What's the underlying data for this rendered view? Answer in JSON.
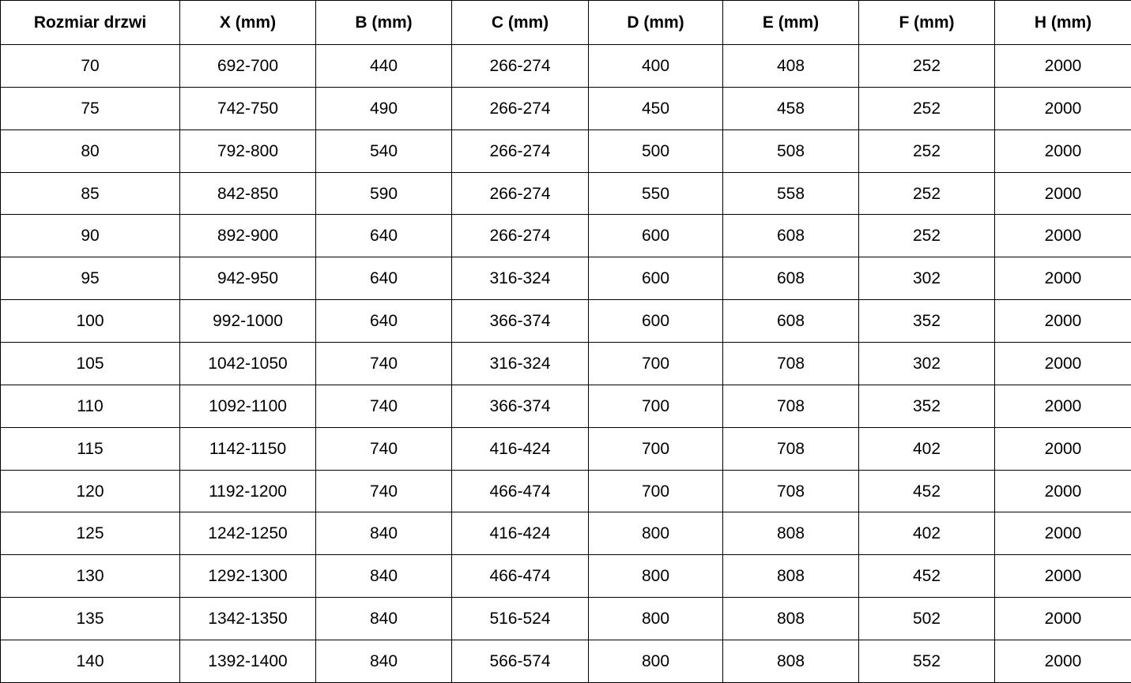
{
  "colors": {
    "background": "#ffffff",
    "border": "#000000",
    "text": "#000000"
  },
  "table": {
    "columns": [
      "Rozmiar drzwi",
      "X (mm)",
      "B (mm)",
      "C (mm)",
      "D (mm)",
      "E (mm)",
      "F (mm)",
      "H (mm)"
    ],
    "rows": [
      [
        "70",
        "692-700",
        "440",
        "266-274",
        "400",
        "408",
        "252",
        "2000"
      ],
      [
        "75",
        "742-750",
        "490",
        "266-274",
        "450",
        "458",
        "252",
        "2000"
      ],
      [
        "80",
        "792-800",
        "540",
        "266-274",
        "500",
        "508",
        "252",
        "2000"
      ],
      [
        "85",
        "842-850",
        "590",
        "266-274",
        "550",
        "558",
        "252",
        "2000"
      ],
      [
        "90",
        "892-900",
        "640",
        "266-274",
        "600",
        "608",
        "252",
        "2000"
      ],
      [
        "95",
        "942-950",
        "640",
        "316-324",
        "600",
        "608",
        "302",
        "2000"
      ],
      [
        "100",
        "992-1000",
        "640",
        "366-374",
        "600",
        "608",
        "352",
        "2000"
      ],
      [
        "105",
        "1042-1050",
        "740",
        "316-324",
        "700",
        "708",
        "302",
        "2000"
      ],
      [
        "110",
        "1092-1100",
        "740",
        "366-374",
        "700",
        "708",
        "352",
        "2000"
      ],
      [
        "115",
        "1142-1150",
        "740",
        "416-424",
        "700",
        "708",
        "402",
        "2000"
      ],
      [
        "120",
        "1192-1200",
        "740",
        "466-474",
        "700",
        "708",
        "452",
        "2000"
      ],
      [
        "125",
        "1242-1250",
        "840",
        "416-424",
        "800",
        "808",
        "402",
        "2000"
      ],
      [
        "130",
        "1292-1300",
        "840",
        "466-474",
        "800",
        "808",
        "452",
        "2000"
      ],
      [
        "135",
        "1342-1350",
        "840",
        "516-524",
        "800",
        "808",
        "502",
        "2000"
      ],
      [
        "140",
        "1392-1400",
        "840",
        "566-574",
        "800",
        "808",
        "552",
        "2000"
      ]
    ]
  }
}
